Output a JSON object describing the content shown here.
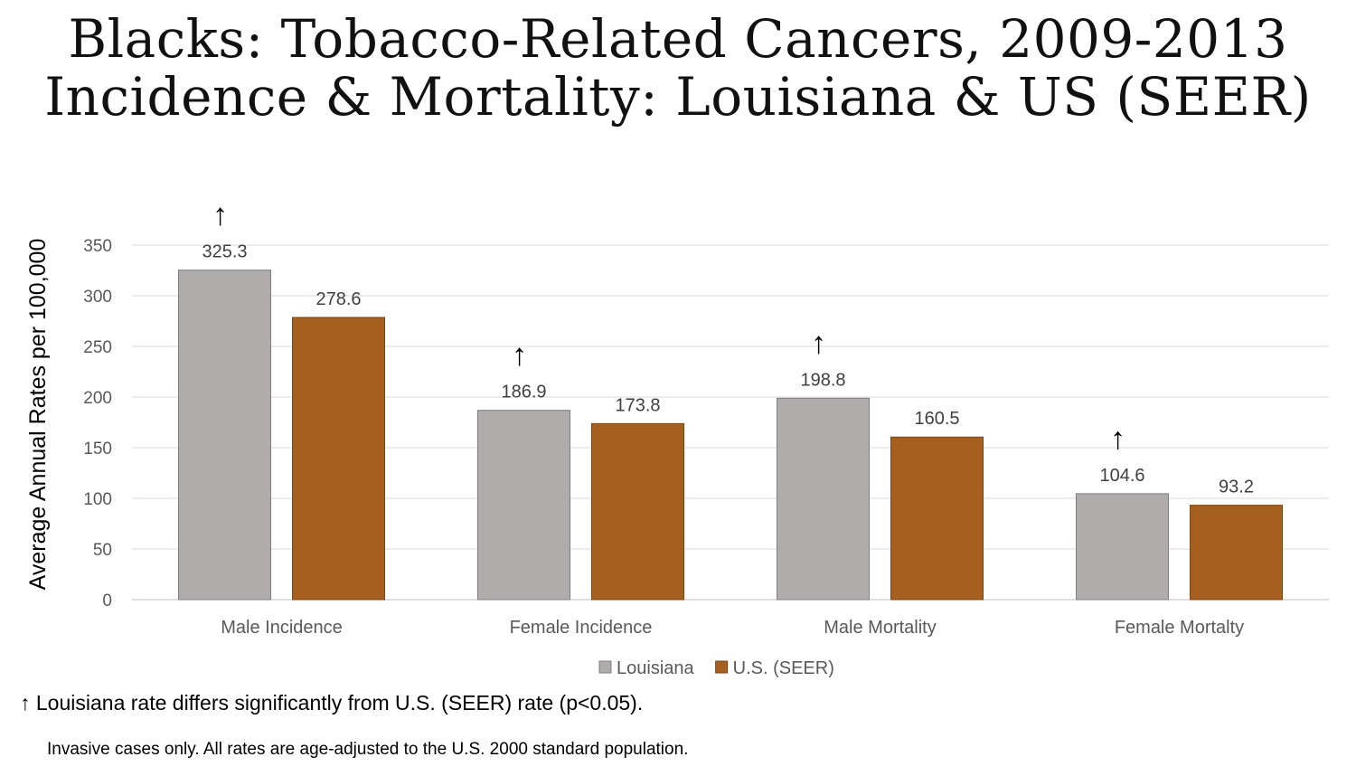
{
  "title_line1": "Blacks: Tobacco-Related Cancers, 2009-2013",
  "title_line2": "Incidence & Mortality: Louisiana & US (SEER)",
  "footnote_arrow": "↑",
  "footnote_significance": "Louisiana rate differs significantly from U.S. (SEER) rate (p<0.05).",
  "footnote_methods": "Invasive cases only. All rates are age-adjusted to the U.S. 2000 standard population.",
  "chart_data": {
    "type": "bar",
    "title": "Blacks: Tobacco-Related Cancers, 2009-2013 Incidence & Mortality: Louisiana & US (SEER)",
    "xlabel": "",
    "ylabel": "Average Annual Rates per 100,000",
    "ylim": [
      0,
      350
    ],
    "yticks": [
      0,
      50,
      100,
      150,
      200,
      250,
      300,
      350
    ],
    "grid": true,
    "legend_position": "bottom",
    "categories": [
      "Male Incidence",
      "Female Incidence",
      "Male Mortality",
      "Female Mortalty"
    ],
    "series": [
      {
        "name": "Louisiana",
        "color": "#B0ACAC",
        "values": [
          325.3,
          186.9,
          198.8,
          104.6
        ],
        "labels": [
          "325.3",
          "186.9",
          "198.8",
          "104.6"
        ]
      },
      {
        "name": "U.S. (SEER)",
        "color": "#A5601F",
        "values": [
          278.6,
          173.8,
          160.5,
          93.2
        ],
        "labels": [
          "278.6",
          "173.8",
          "160.5",
          "93.2"
        ]
      }
    ],
    "significance_marker": "↑",
    "significant": [
      true,
      true,
      true,
      true
    ]
  }
}
